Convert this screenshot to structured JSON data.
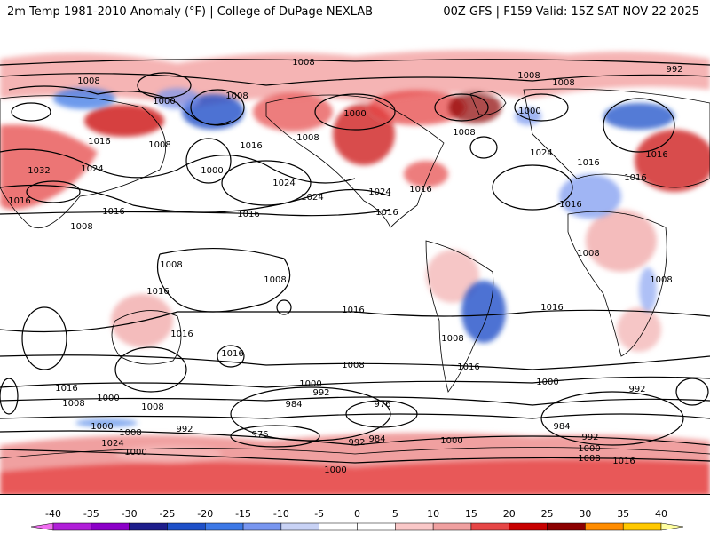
{
  "header": {
    "title_left": "2m Temp 1981-2010 Anomaly (°F) | College of DuPage NEXLAB",
    "title_right": "00Z GFS | F159 Valid: 15Z SAT NOV 22 2025"
  },
  "colorbar": {
    "ticks": [
      "-40",
      "-35",
      "-30",
      "-25",
      "-20",
      "-15",
      "-10",
      "-5",
      "0",
      "5",
      "10",
      "15",
      "20",
      "25",
      "30",
      "35",
      "40"
    ],
    "colors": [
      "#f06ef0",
      "#b01ed8",
      "#8c00c8",
      "#1e1e8c",
      "#1e50c8",
      "#3c78e6",
      "#7896f0",
      "#c8d2f5",
      "#ffffff",
      "#ffffff",
      "#fac8c8",
      "#f0a0a0",
      "#e64646",
      "#c80000",
      "#8c0000",
      "#ff8c00",
      "#ffc800",
      "#ffffa0"
    ]
  },
  "map": {
    "isobar_labels": [
      {
        "text": "1008"
      },
      {
        "text": "1008"
      },
      {
        "text": "1008"
      },
      {
        "text": "1008"
      },
      {
        "text": "992"
      },
      {
        "text": "1000"
      },
      {
        "text": "1008"
      },
      {
        "text": "1000"
      },
      {
        "text": "1008"
      },
      {
        "text": "1000"
      },
      {
        "text": "1016"
      },
      {
        "text": "1008"
      },
      {
        "text": "1008"
      },
      {
        "text": "1016"
      },
      {
        "text": "1032"
      },
      {
        "text": "1024"
      },
      {
        "text": "1000"
      },
      {
        "text": "1016"
      },
      {
        "text": "1024"
      },
      {
        "text": "1024"
      },
      {
        "text": "1016"
      },
      {
        "text": "1024"
      },
      {
        "text": "1016"
      },
      {
        "text": "1016"
      },
      {
        "text": "1024"
      },
      {
        "text": "1016"
      },
      {
        "text": "1016"
      },
      {
        "text": "1016"
      },
      {
        "text": "1016"
      },
      {
        "text": "1016"
      },
      {
        "text": "1008"
      },
      {
        "text": "1008"
      },
      {
        "text": "1008"
      },
      {
        "text": "1008"
      },
      {
        "text": "1016"
      },
      {
        "text": "1016"
      },
      {
        "text": "1008"
      },
      {
        "text": "1016"
      },
      {
        "text": "1016"
      },
      {
        "text": "1016"
      },
      {
        "text": "1008"
      },
      {
        "text": "1016"
      },
      {
        "text": "1008"
      },
      {
        "text": "1000"
      },
      {
        "text": "1008"
      },
      {
        "text": "1000"
      },
      {
        "text": "992"
      },
      {
        "text": "984"
      },
      {
        "text": "976"
      },
      {
        "text": "1008"
      },
      {
        "text": "1016"
      },
      {
        "text": "1000"
      },
      {
        "text": "992"
      },
      {
        "text": "984"
      },
      {
        "text": "992"
      },
      {
        "text": "1000"
      },
      {
        "text": "1008"
      },
      {
        "text": "1016"
      },
      {
        "text": "1000"
      },
      {
        "text": "1008"
      },
      {
        "text": "1024"
      },
      {
        "text": "992"
      },
      {
        "text": "1000"
      },
      {
        "text": "976"
      },
      {
        "text": "992"
      },
      {
        "text": "984"
      },
      {
        "text": "1000"
      },
      {
        "text": "1000"
      }
    ]
  }
}
